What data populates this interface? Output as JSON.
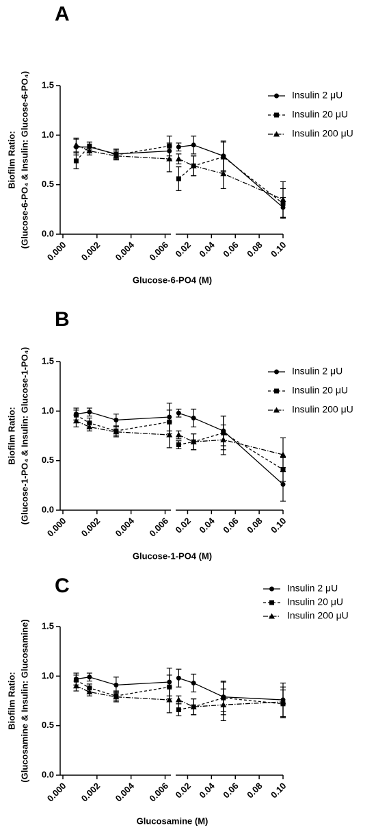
{
  "chart_data": [
    {
      "type": "line",
      "panel_label": "A",
      "y_label": [
        "Biofilm Ratio:",
        "(Glucose-6-PO₄ & Insulin: Glucose-6-PO₄)"
      ],
      "x_label": "Glucose-6-PO4 (M)",
      "x": [
        0.00078,
        0.00156,
        0.003125,
        0.00625,
        0.0125,
        0.025,
        0.05,
        0.1
      ],
      "x_segments": [
        {
          "xlim": [
            0,
            0.0063
          ],
          "xticks": [
            {
              "value": 0,
              "label": "0.000"
            },
            0.002,
            0.004,
            0.006
          ]
        },
        {
          "xlim": [
            0.01,
            0.1
          ],
          "xticks": [
            0.02,
            0.04,
            0.06,
            0.08,
            {
              "value": 0.1,
              "label": "0.10"
            }
          ]
        }
      ],
      "ylim": [
        0,
        1.5
      ],
      "yticks": [
        {
          "value": 0,
          "label": "0.0"
        },
        0.5,
        {
          "value": 1,
          "label": "1.0"
        },
        1.5
      ],
      "legend": "right",
      "series": [
        {
          "name": "Insulin 2 μU",
          "color": "#000000",
          "line_style": "solid",
          "marker": "circle",
          "values": [
            0.88,
            0.88,
            0.81,
            0.84,
            0.88,
            0.9,
            0.79,
            0.27
          ],
          "errors": [
            0.08,
            0.05,
            0.05,
            0.08,
            0.04,
            0.09,
            0.15,
            0.1
          ]
        },
        {
          "name": "Insulin 20 μU",
          "color": "#000000",
          "line_style": "dashed",
          "marker": "square",
          "values": [
            0.74,
            0.89,
            0.8,
            0.89,
            0.56,
            0.69,
            0.78,
            0.31
          ],
          "errors": [
            0.08,
            0.04,
            0.05,
            0.1,
            0.12,
            0.1,
            0.15,
            0.15
          ]
        },
        {
          "name": "Insulin 200 μU",
          "color": "#000000",
          "line_style": "dashdot",
          "marker": "triangle",
          "values": [
            0.9,
            0.84,
            0.79,
            0.76,
            0.76,
            0.69,
            0.61,
            0.35
          ],
          "errors": [
            0.07,
            0.04,
            0.04,
            0.13,
            0.05,
            0.1,
            0.15,
            0.18
          ]
        }
      ]
    },
    {
      "type": "line",
      "panel_label": "B",
      "y_label": [
        "Biofilm Ratio:",
        "(Glucose-1-PO₄ & Insulin: Glucose-1-PO₄)"
      ],
      "x_label": "Glucose-1-PO4 (M)",
      "x": [
        0.00078,
        0.00156,
        0.003125,
        0.00625,
        0.0125,
        0.025,
        0.05,
        0.1
      ],
      "x_segments": [
        {
          "xlim": [
            0,
            0.0063
          ],
          "xticks": [
            {
              "value": 0,
              "label": "0.000"
            },
            0.002,
            0.004,
            0.006
          ]
        },
        {
          "xlim": [
            0.01,
            0.1
          ],
          "xticks": [
            0.02,
            0.04,
            0.06,
            0.08,
            {
              "value": 0.1,
              "label": "0.10"
            }
          ]
        }
      ],
      "ylim": [
        0,
        1.5
      ],
      "yticks": [
        {
          "value": 0,
          "label": "0.0"
        },
        0.5,
        {
          "value": 1,
          "label": "1.0"
        },
        1.5
      ],
      "legend": "right",
      "series": [
        {
          "name": "Insulin 2 μU",
          "color": "#000000",
          "line_style": "solid",
          "marker": "circle",
          "values": [
            0.97,
            0.99,
            0.91,
            0.94,
            0.98,
            0.93,
            0.8,
            0.26
          ],
          "errors": [
            0.06,
            0.04,
            0.06,
            0.14,
            0.04,
            0.09,
            0.15,
            0.17
          ]
        },
        {
          "name": "Insulin 20 μU",
          "color": "#000000",
          "line_style": "dashed",
          "marker": "square",
          "values": [
            0.96,
            0.88,
            0.8,
            0.89,
            0.66,
            0.69,
            0.78,
            0.41
          ],
          "errors": [
            0.05,
            0.05,
            0.05,
            0.12,
            0.04,
            0.08,
            0.17,
            0.12
          ]
        },
        {
          "name": "Insulin 200 μU",
          "color": "#000000",
          "line_style": "dashdot",
          "marker": "triangle",
          "values": [
            0.9,
            0.84,
            0.79,
            0.76,
            0.76,
            0.69,
            0.71,
            0.56
          ],
          "errors": [
            0.06,
            0.04,
            0.05,
            0.13,
            0.04,
            0.08,
            0.15,
            0.17
          ]
        }
      ]
    },
    {
      "type": "line",
      "panel_label": "C",
      "y_label": [
        "Biofilm Ratio:",
        "(Glucosamine & Insulin: Glucosamine)"
      ],
      "x_label": "Glucosamine (M)",
      "x": [
        0.00078,
        0.00156,
        0.003125,
        0.00625,
        0.0125,
        0.025,
        0.05,
        0.1
      ],
      "x_segments": [
        {
          "xlim": [
            0,
            0.0063
          ],
          "xticks": [
            {
              "value": 0,
              "label": "0.000"
            },
            0.002,
            0.004,
            0.006
          ]
        },
        {
          "xlim": [
            0.01,
            0.1
          ],
          "xticks": [
            0.02,
            0.04,
            0.06,
            0.08,
            {
              "value": 0.1,
              "label": "0.10"
            }
          ]
        }
      ],
      "ylim": [
        0,
        1.5
      ],
      "yticks": [
        {
          "value": 0,
          "label": "0.0"
        },
        0.5,
        {
          "value": 1,
          "label": "1.0"
        },
        1.5
      ],
      "legend": "top",
      "series": [
        {
          "name": "Insulin 2 μU",
          "color": "#000000",
          "line_style": "solid",
          "marker": "circle",
          "values": [
            0.97,
            0.99,
            0.91,
            0.94,
            0.98,
            0.93,
            0.79,
            0.76
          ],
          "errors": [
            0.06,
            0.04,
            0.08,
            0.14,
            0.09,
            0.09,
            0.15,
            0.17
          ]
        },
        {
          "name": "Insulin 20 μU",
          "color": "#000000",
          "line_style": "dashed",
          "marker": "square",
          "values": [
            0.96,
            0.88,
            0.8,
            0.89,
            0.66,
            0.69,
            0.78,
            0.72
          ],
          "errors": [
            0.05,
            0.04,
            0.05,
            0.12,
            0.06,
            0.08,
            0.17,
            0.14
          ]
        },
        {
          "name": "Insulin 200 μU",
          "color": "#000000",
          "line_style": "dashdot",
          "marker": "triangle",
          "values": [
            0.9,
            0.84,
            0.79,
            0.76,
            0.76,
            0.69,
            0.71,
            0.74
          ],
          "errors": [
            0.05,
            0.04,
            0.05,
            0.13,
            0.04,
            0.08,
            0.16,
            0.15
          ]
        }
      ]
    }
  ]
}
